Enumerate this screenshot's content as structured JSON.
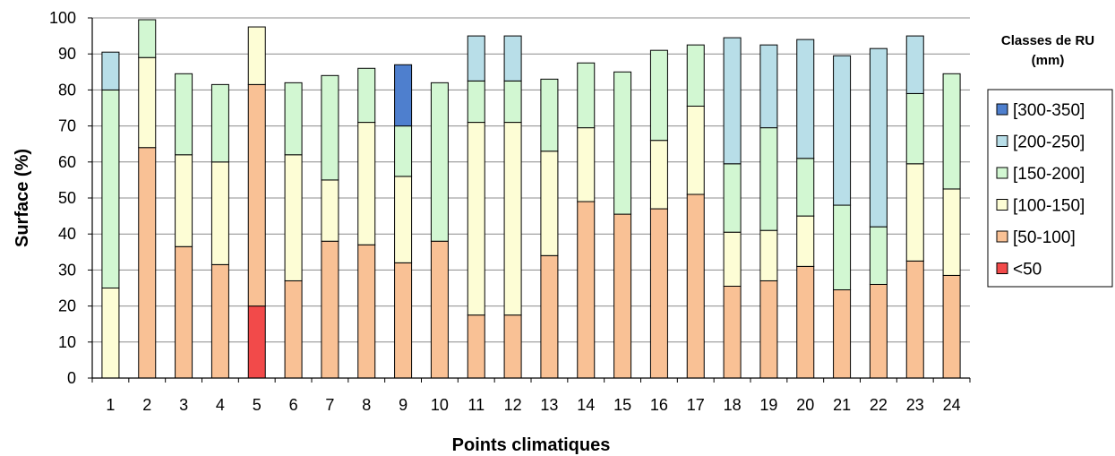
{
  "chart_data": {
    "type": "bar",
    "stacked": true,
    "xlabel": "Points climatiques",
    "ylabel": "Surface (%)",
    "ylim": [
      0,
      100
    ],
    "yticks": [
      0,
      10,
      20,
      30,
      40,
      50,
      60,
      70,
      80,
      90,
      100
    ],
    "grid": "horizontal",
    "legend_position": "right",
    "legend_title": [
      "Classes de RU",
      "(mm)"
    ],
    "categories": [
      "1",
      "2",
      "3",
      "4",
      "5",
      "6",
      "7",
      "8",
      "9",
      "10",
      "11",
      "12",
      "13",
      "14",
      "15",
      "16",
      "17",
      "18",
      "19",
      "20",
      "21",
      "22",
      "23",
      "24"
    ],
    "series": [
      {
        "name": "<50",
        "color": "#f24a4a",
        "values": [
          0,
          0,
          0,
          0,
          20,
          0,
          0,
          0,
          0,
          0,
          0,
          0,
          0,
          0,
          0,
          0,
          0,
          0,
          0,
          0,
          0,
          0,
          0,
          0
        ]
      },
      {
        "name": "[50-100]",
        "color": "#f9c195",
        "values": [
          0,
          64,
          36.5,
          31.5,
          61.5,
          27,
          38,
          37,
          32,
          38,
          17.5,
          17.5,
          34,
          49,
          45.5,
          47,
          51,
          25.5,
          27,
          31,
          24.5,
          26,
          32.5,
          28.5
        ]
      },
      {
        "name": "[100-150]",
        "color": "#fdfdd5",
        "values": [
          25,
          25,
          25.5,
          28.5,
          16,
          35,
          17,
          34,
          24,
          0,
          53.5,
          53.5,
          29,
          20.5,
          0,
          19,
          24.5,
          15,
          14,
          14,
          0,
          0,
          27,
          24
        ]
      },
      {
        "name": "[150-200]",
        "color": "#d2f7d2",
        "values": [
          55,
          10.5,
          22.5,
          21.5,
          0,
          20,
          29,
          15,
          14,
          44,
          11.5,
          11.5,
          20,
          18,
          39.5,
          25,
          17,
          19,
          28.5,
          16,
          23.5,
          16,
          19.5,
          32
        ]
      },
      {
        "name": "[200-250]",
        "color": "#b8dee8",
        "values": [
          10.5,
          0,
          0,
          0,
          0,
          0,
          0,
          0,
          0,
          0,
          12.5,
          12.5,
          0,
          0,
          0,
          0,
          0,
          35,
          23,
          33,
          41.5,
          49.5,
          16,
          0
        ]
      },
      {
        "name": "[300-350]",
        "color": "#4e7fce",
        "values": [
          0,
          0,
          0,
          0,
          0,
          0,
          0,
          0,
          17,
          0,
          0,
          0,
          0,
          0,
          0,
          0,
          0,
          0,
          0,
          0,
          0,
          0,
          0,
          0
        ]
      }
    ],
    "legend_order": [
      "[300-350]",
      "[200-250]",
      "[150-200]",
      "[100-150]",
      "[50-100]",
      "<50"
    ]
  }
}
